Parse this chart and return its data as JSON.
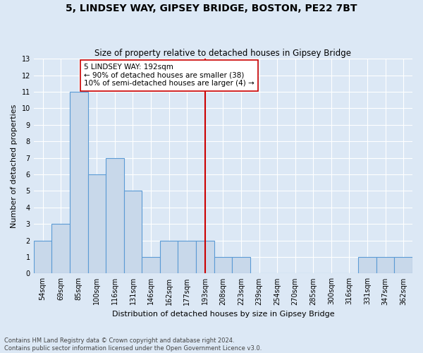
{
  "title": "5, LINDSEY WAY, GIPSEY BRIDGE, BOSTON, PE22 7BT",
  "subtitle": "Size of property relative to detached houses in Gipsey Bridge",
  "xlabel": "Distribution of detached houses by size in Gipsey Bridge",
  "ylabel": "Number of detached properties",
  "footnote1": "Contains HM Land Registry data © Crown copyright and database right 2024.",
  "footnote2": "Contains public sector information licensed under the Open Government Licence v3.0.",
  "bins": [
    "54sqm",
    "69sqm",
    "85sqm",
    "100sqm",
    "116sqm",
    "131sqm",
    "146sqm",
    "162sqm",
    "177sqm",
    "193sqm",
    "208sqm",
    "223sqm",
    "239sqm",
    "254sqm",
    "270sqm",
    "285sqm",
    "300sqm",
    "316sqm",
    "331sqm",
    "347sqm",
    "362sqm"
  ],
  "counts": [
    2,
    3,
    11,
    6,
    7,
    5,
    1,
    2,
    2,
    2,
    1,
    1,
    0,
    0,
    0,
    0,
    0,
    0,
    1,
    1,
    1
  ],
  "vline_index": 9,
  "annotation_text": "5 LINDSEY WAY: 192sqm\n← 90% of detached houses are smaller (38)\n10% of semi-detached houses are larger (4) →",
  "bar_color": "#c8d8ea",
  "bar_edge_color": "#5b9bd5",
  "vline_color": "#cc0000",
  "annotation_box_facecolor": "#ffffff",
  "annotation_box_edgecolor": "#cc0000",
  "ylim": [
    0,
    13
  ],
  "yticks": [
    0,
    1,
    2,
    3,
    4,
    5,
    6,
    7,
    8,
    9,
    10,
    11,
    12,
    13
  ],
  "bg_color": "#dce8f5",
  "grid_color": "#ffffff",
  "title_fontsize": 10,
  "subtitle_fontsize": 8.5,
  "tick_fontsize": 7,
  "ylabel_fontsize": 8,
  "xlabel_fontsize": 8,
  "annotation_fontsize": 7.5,
  "footnote_fontsize": 6
}
